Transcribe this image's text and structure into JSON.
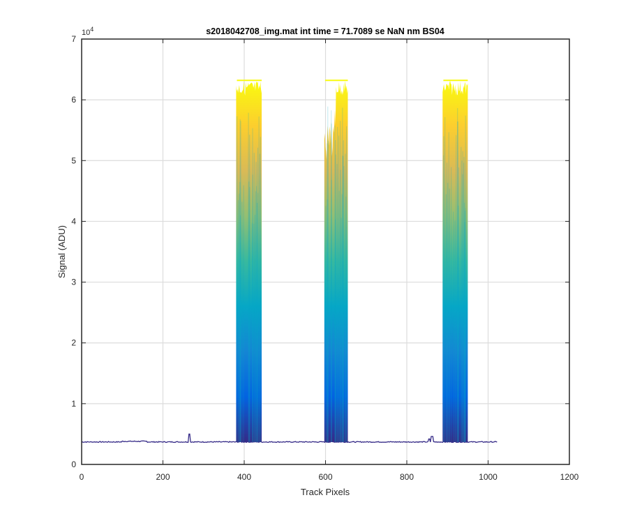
{
  "chart_data": {
    "type": "area",
    "title": "s2018042708_img.mat int time = 71.7089 se  NaN nm BS04",
    "xlabel": "Track Pixels",
    "ylabel": "Signal (ADU)",
    "xlim": [
      0,
      1200
    ],
    "ylim": [
      0,
      70000
    ],
    "xticks": [
      0,
      200,
      400,
      600,
      800,
      1000,
      1200
    ],
    "yticks": [
      0,
      10000,
      20000,
      30000,
      40000,
      50000,
      60000,
      70000
    ],
    "ytick_labels": [
      "0",
      "1",
      "2",
      "3",
      "4",
      "5",
      "6",
      "7"
    ],
    "y_exponent": "10",
    "y_exponent_power": "4",
    "grid": true,
    "colormap": "parula",
    "colormap_stops": [
      "#352a87",
      "#0363e1",
      "#1485d4",
      "#06a7c6",
      "#38b99e",
      "#92bf73",
      "#d9ba56",
      "#fcce2e",
      "#f9fb0e"
    ],
    "baseline": 3700,
    "x_extent": [
      0,
      1023
    ],
    "saturation_level": 63200,
    "peaks": [
      {
        "x_start": 380,
        "x_end": 443,
        "top": 63200
      },
      {
        "x_start": 597,
        "x_end": 655,
        "top": 63200
      },
      {
        "x_start": 888,
        "x_end": 950,
        "top": 63200
      }
    ],
    "spikes": [
      {
        "x": 265,
        "y": 5000
      },
      {
        "x": 855,
        "y": 4200
      },
      {
        "x": 862,
        "y": 4600
      }
    ]
  }
}
